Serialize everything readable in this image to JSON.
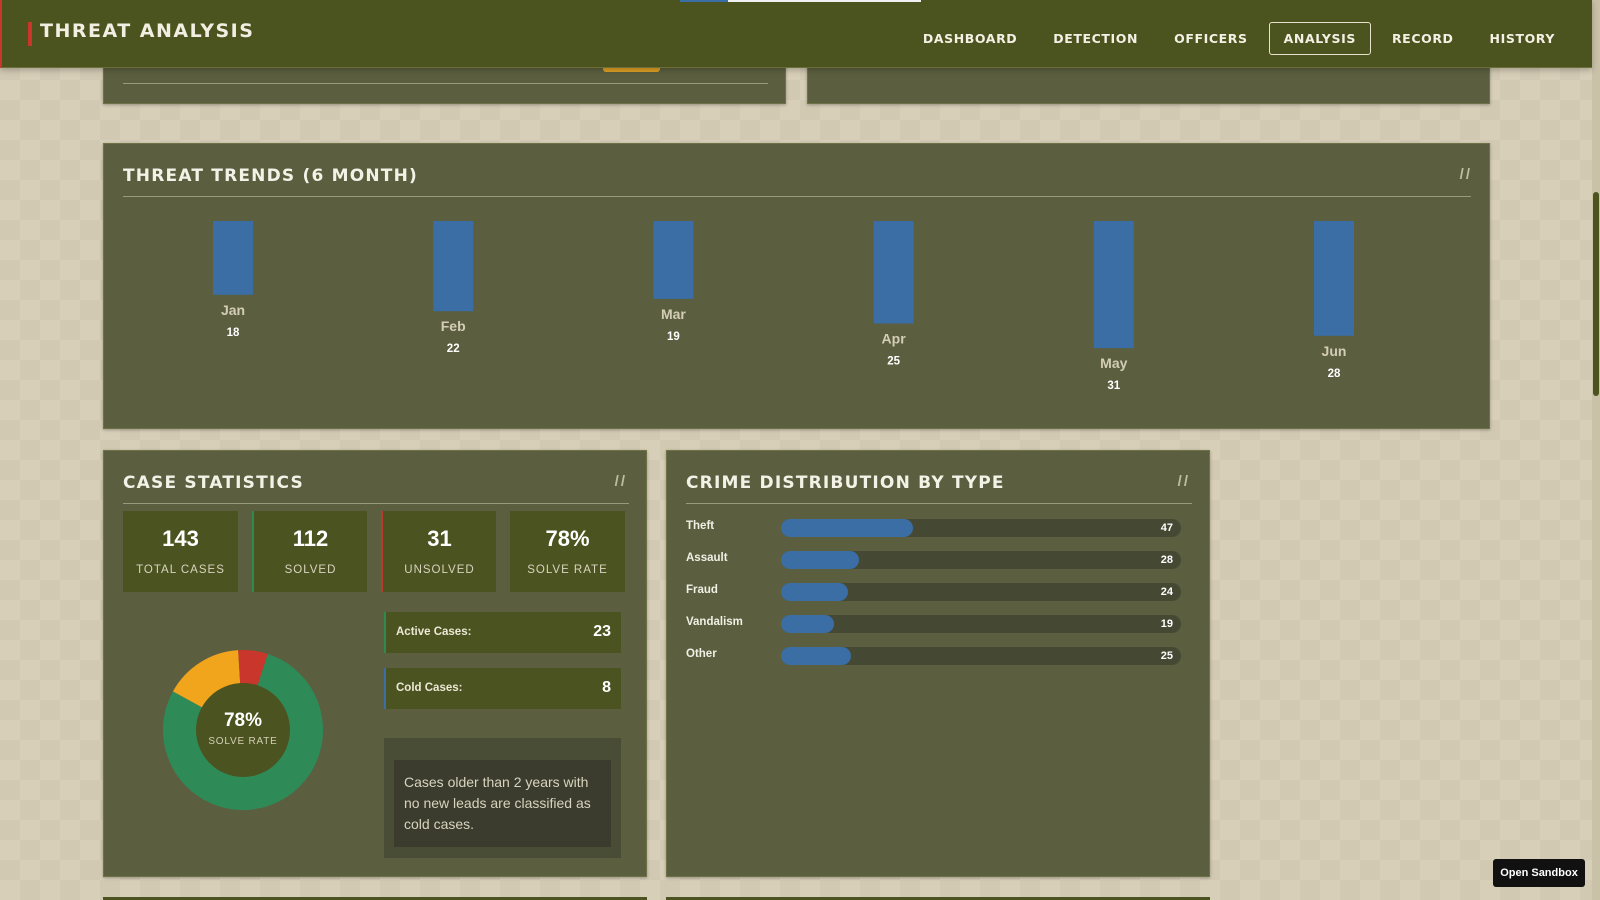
{
  "header": {
    "title": "THREAT ANALYSIS",
    "nav": [
      {
        "label": "DASHBOARD",
        "active": false
      },
      {
        "label": "DETECTION",
        "active": false
      },
      {
        "label": "OFFICERS",
        "active": false
      },
      {
        "label": "ANALYSIS",
        "active": true
      },
      {
        "label": "RECORD",
        "active": false
      },
      {
        "label": "HISTORY",
        "active": false
      }
    ]
  },
  "trends": {
    "title": "THREAT TRENDS (6 MONTH)",
    "slash": "//"
  },
  "chart_data": {
    "type": "bar",
    "categories": [
      "Jan",
      "Feb",
      "Mar",
      "Apr",
      "May",
      "Jun"
    ],
    "values": [
      18,
      22,
      19,
      25,
      31,
      28
    ],
    "title": "THREAT TRENDS (6 MONTH)",
    "xlabel": "",
    "ylabel": "",
    "data_labels": true,
    "grid": false,
    "legend": "none",
    "colors": {
      "bar": "#3b6ea5"
    }
  },
  "case_stats": {
    "title": "CASE STATISTICS",
    "slash": "//",
    "boxes": [
      {
        "value": "143",
        "label": "TOTAL CASES"
      },
      {
        "value": "112",
        "label": "SOLVED"
      },
      {
        "value": "31",
        "label": "UNSOLVED"
      },
      {
        "value": "78%",
        "label": "SOLVE RATE"
      }
    ],
    "donut": {
      "percent_label": "78%",
      "caption": "SOLVE RATE",
      "segments": [
        {
          "name": "solved",
          "fraction": 0.78,
          "color": "#2e8b57"
        },
        {
          "name": "active",
          "fraction": 0.16,
          "color": "#f0a51c"
        },
        {
          "name": "cold",
          "fraction": 0.06,
          "color": "#c9362b"
        }
      ]
    },
    "active_label": "Active Cases:",
    "active_value": "23",
    "cold_label": "Cold Cases:",
    "cold_value": "8",
    "note": "Cases older than 2 years with no new leads are classified as cold cases."
  },
  "crime_dist": {
    "title": "CRIME DISTRIBUTION BY TYPE",
    "slash": "//",
    "items": [
      {
        "name": "Theft",
        "count": "47",
        "fraction": 0.33
      },
      {
        "name": "Assault",
        "count": "28",
        "fraction": 0.196
      },
      {
        "name": "Fraud",
        "count": "24",
        "fraction": 0.168
      },
      {
        "name": "Vandalism",
        "count": "19",
        "fraction": 0.133
      },
      {
        "name": "Other",
        "count": "25",
        "fraction": 0.175
      }
    ]
  },
  "sandbox_button": "Open Sandbox",
  "colors": {
    "header_bg": "#4b531f",
    "panel_bg": "#5b5f40",
    "accent_blue": "#3b6ea5",
    "accent_red": "#c9362b",
    "accent_green": "#2e8b57",
    "accent_orange": "#f0a51c"
  }
}
